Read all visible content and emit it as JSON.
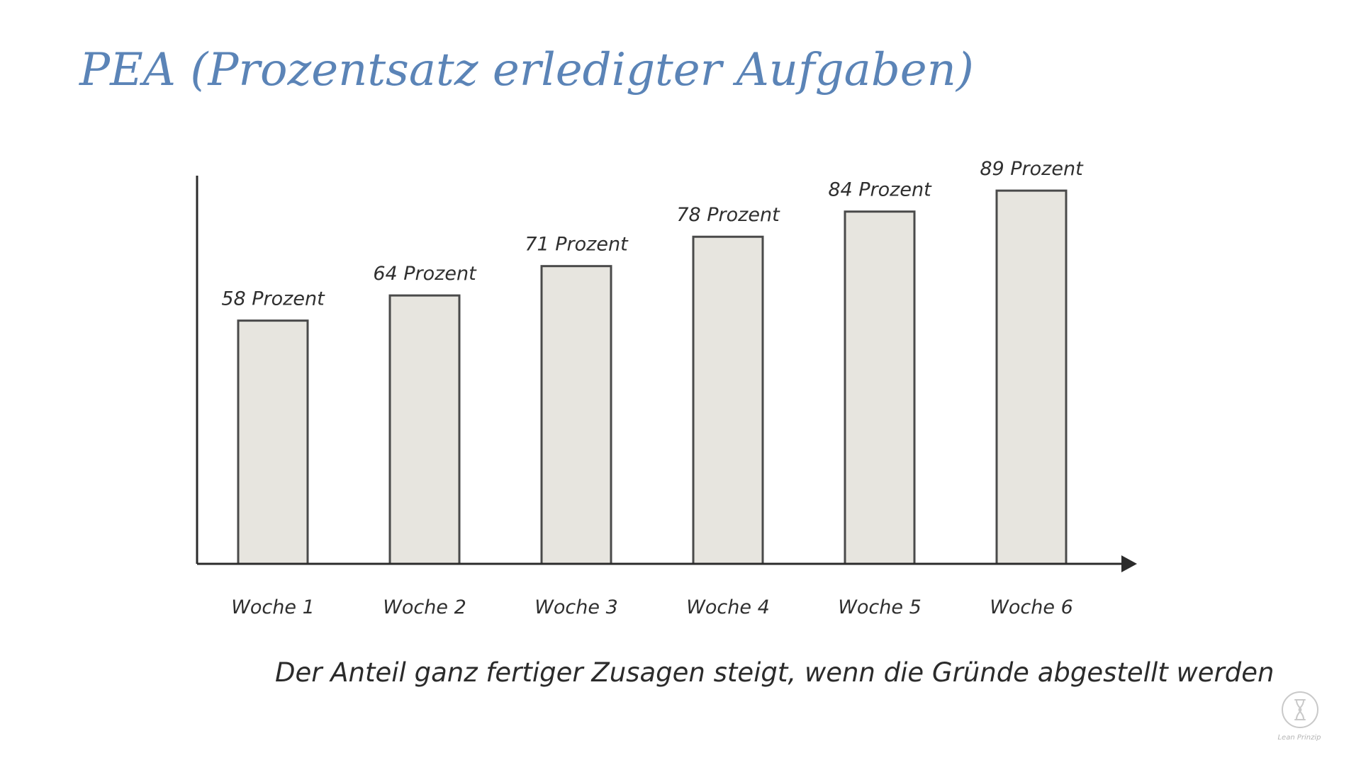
{
  "title": "PEA (Prozentsatz erledigter Aufgaben)",
  "caption": "Der Anteil ganz fertiger Zusagen steigt, wenn die Gründe abgestellt werden",
  "logo": {
    "text": "Lean Prinzip",
    "icon": "hourglass-icon"
  },
  "colors": {
    "title": "#5b84b7",
    "bar_fill": "#e7e5df",
    "bar_stroke": "#4a4a4a",
    "axis": "#2b2b2b",
    "text": "#2f2f2f"
  },
  "chart_data": {
    "type": "bar",
    "categories": [
      "Woche 1",
      "Woche 2",
      "Woche 3",
      "Woche 4",
      "Woche 5",
      "Woche 6"
    ],
    "values": [
      58,
      64,
      71,
      78,
      84,
      89
    ],
    "data_labels": [
      "58 Prozent",
      "64 Prozent",
      "71 Prozent",
      "78 Prozent",
      "84 Prozent",
      "89 Prozent"
    ],
    "title": "",
    "xlabel": "",
    "ylabel": "",
    "ylim": [
      0,
      100
    ],
    "grid": false,
    "legend": "none"
  }
}
